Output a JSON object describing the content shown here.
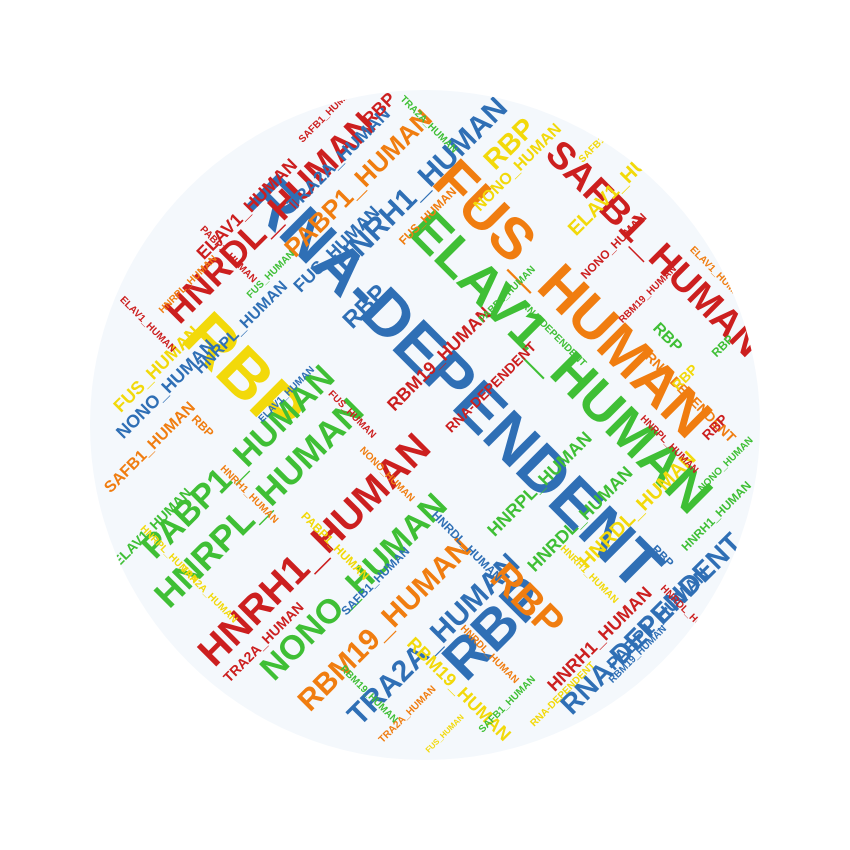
{
  "palette": {
    "blue": "#2f6fb5",
    "green": "#3fbf35",
    "red": "#cc1f1f",
    "orange": "#f07d10",
    "yellow": "#f2d90a"
  },
  "cloud": {
    "words": [
      {
        "text": "RNA-DEPENDENT",
        "color": "blue"
      },
      {
        "text": "FUS_HUMAN",
        "color": "orange"
      },
      {
        "text": "ELAV1_HUMAN",
        "color": "green"
      },
      {
        "text": "RBP",
        "color": "yellow"
      },
      {
        "text": "HNRDL_HUMAN",
        "color": "red"
      },
      {
        "text": "SAFB1_HUMAN",
        "color": "red"
      },
      {
        "text": "HNRH1_HUMAN",
        "color": "red"
      },
      {
        "text": "HNRPL_HUMAN",
        "color": "green"
      },
      {
        "text": "PABP1_HUMAN",
        "color": "green"
      },
      {
        "text": "NONO_HUMAN",
        "color": "green"
      },
      {
        "text": "RBM19_HUMAN",
        "color": "orange"
      },
      {
        "text": "RBP",
        "color": "blue"
      },
      {
        "text": "TRA2A_HUMAN",
        "color": "blue"
      },
      {
        "text": "RBP",
        "color": "orange"
      },
      {
        "text": "RNA-DEPENDENT",
        "color": "blue"
      },
      {
        "text": "HNRH1_HUMAN",
        "color": "blue"
      },
      {
        "text": "PABP1_HUMAN",
        "color": "orange"
      },
      {
        "text": "RBM19_HUMAN",
        "color": "red"
      },
      {
        "text": "HNRDL_HUMAN",
        "color": "yellow"
      },
      {
        "text": "RBP",
        "color": "yellow"
      },
      {
        "text": "TRA2A_HUMAN",
        "color": "blue"
      },
      {
        "text": "ELAV1_HUMAN",
        "color": "red"
      },
      {
        "text": "NONO_HUMAN",
        "color": "blue"
      },
      {
        "text": "FUS_HUMAN",
        "color": "yellow"
      },
      {
        "text": "HNRPL_HUMAN",
        "color": "blue"
      },
      {
        "text": "SAFB1_HUMAN",
        "color": "orange"
      },
      {
        "text": "RBP",
        "color": "blue"
      },
      {
        "text": "ELAV1_HUMAN",
        "color": "yellow"
      },
      {
        "text": "HNRPL_HUMAN",
        "color": "green"
      },
      {
        "text": "NONO_HUMAN",
        "color": "yellow"
      },
      {
        "text": "RBP",
        "color": "red"
      },
      {
        "text": "PABP1_HUMAN",
        "color": "blue"
      },
      {
        "text": "RNA-DEPENDENT",
        "color": "red"
      },
      {
        "text": "RBM19_HUMAN",
        "color": "yellow"
      },
      {
        "text": "HNRH1_HUMAN",
        "color": "red"
      },
      {
        "text": "TRA2A_HUMAN",
        "color": "red"
      },
      {
        "text": "FUS_HUMAN",
        "color": "blue"
      },
      {
        "text": "SAFB1_HUMAN",
        "color": "blue"
      },
      {
        "text": "HNRDL_HUMAN",
        "color": "green"
      },
      {
        "text": "RBP",
        "color": "green"
      },
      {
        "text": "ELAV1_HUMAN",
        "color": "green"
      },
      {
        "text": "NONO_HUMAN",
        "color": "red"
      },
      {
        "text": "FUS_HUMAN",
        "color": "orange"
      },
      {
        "text": "RNA-DEPENDENT",
        "color": "orange"
      },
      {
        "text": "PABP1_HUMAN",
        "color": "yellow"
      },
      {
        "text": "HNRPL_HUMAN",
        "color": "orange"
      },
      {
        "text": "HNRH1_HUMAN",
        "color": "green"
      },
      {
        "text": "RBM19_HUMAN",
        "color": "blue"
      },
      {
        "text": "RBP",
        "color": "orange"
      },
      {
        "text": "TRA2A_HUMAN",
        "color": "yellow"
      },
      {
        "text": "SAFB1_HUMAN",
        "color": "green"
      },
      {
        "text": "HNRDL_HUMAN",
        "color": "blue"
      },
      {
        "text": "ELAV1_HUMAN",
        "color": "orange"
      },
      {
        "text": "FUS_HUMAN",
        "color": "green"
      },
      {
        "text": "NONO_HUMAN",
        "color": "orange"
      },
      {
        "text": "RBP",
        "color": "red"
      },
      {
        "text": "RNA-DEPENDENT",
        "color": "green"
      },
      {
        "text": "HNRPL_HUMAN",
        "color": "red"
      },
      {
        "text": "PABP1_HUMAN",
        "color": "red"
      },
      {
        "text": "HNRH1_HUMAN",
        "color": "yellow"
      },
      {
        "text": "RBM19_HUMAN",
        "color": "green"
      },
      {
        "text": "TRA2A_HUMAN",
        "color": "green"
      },
      {
        "text": "RBP",
        "color": "blue"
      },
      {
        "text": "SAFB1_HUMAN",
        "color": "yellow"
      },
      {
        "text": "HNRDL_HUMAN",
        "color": "orange"
      },
      {
        "text": "ELAV1_HUMAN",
        "color": "blue"
      },
      {
        "text": "FUS_HUMAN",
        "color": "red"
      },
      {
        "text": "NONO_HUMAN",
        "color": "green"
      },
      {
        "text": "RBP",
        "color": "yellow"
      },
      {
        "text": "RNA-DEPENDENT",
        "color": "yellow"
      },
      {
        "text": "HNRPL_HUMAN",
        "color": "yellow"
      },
      {
        "text": "PABP1_HUMAN",
        "color": "green"
      },
      {
        "text": "HNRH1_HUMAN",
        "color": "orange"
      },
      {
        "text": "RBM19_HUMAN",
        "color": "red"
      },
      {
        "text": "TRA2A_HUMAN",
        "color": "orange"
      },
      {
        "text": "RBP",
        "color": "green"
      },
      {
        "text": "SAFB1_HUMAN",
        "color": "red"
      },
      {
        "text": "HNRDL_HUMAN",
        "color": "red"
      },
      {
        "text": "ELAV1_HUMAN",
        "color": "red"
      },
      {
        "text": "FUS_HUMAN",
        "color": "yellow"
      }
    ]
  }
}
